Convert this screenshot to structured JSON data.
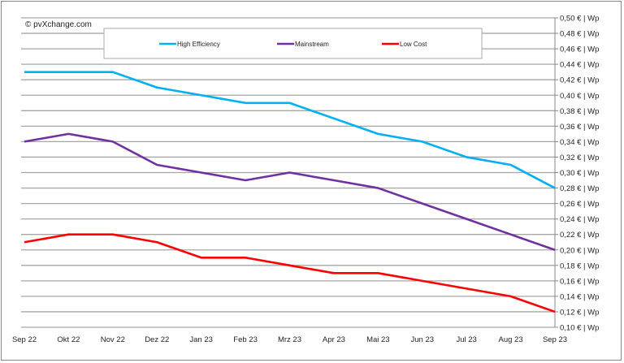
{
  "chart_data": {
    "type": "line",
    "copyright": "© pvXchange.com",
    "categories": [
      "Sep 22",
      "Okt 22",
      "Nov 22",
      "Dez 22",
      "Jan 23",
      "Feb 23",
      "Mrz 23",
      "Apr 23",
      "Mai 23",
      "Jun 23",
      "Jul 23",
      "Aug 23",
      "Sep 23"
    ],
    "ylim": [
      0.1,
      0.5
    ],
    "ytick_step": 0.02,
    "ytick_labels": [
      "0,10 € | Wp",
      "0,12 € | Wp",
      "0,14 € | Wp",
      "0,16 € | Wp",
      "0,18 € | Wp",
      "0,20 € | Wp",
      "0,22 € | Wp",
      "0,24 € | Wp",
      "0,26 € | Wp",
      "0,28 € | Wp",
      "0,30 € | Wp",
      "0,32 € | Wp",
      "0,34 € | Wp",
      "0,36 € | Wp",
      "0,38 € | Wp",
      "0,40 € | Wp",
      "0,42 € | Wp",
      "0,44 € | Wp",
      "0,46 € | Wp",
      "0,48 € | Wp",
      "0,50 € | Wp"
    ],
    "yaxis_position": "right",
    "grid": true,
    "legend_position": "top",
    "series": [
      {
        "name": "High Efficiency",
        "color": "#00b0f0",
        "values": [
          0.43,
          0.43,
          0.43,
          0.41,
          0.4,
          0.39,
          0.39,
          0.37,
          0.35,
          0.34,
          0.32,
          0.31,
          0.28
        ]
      },
      {
        "name": "Mainstream",
        "color": "#7030a0",
        "values": [
          0.34,
          0.35,
          0.34,
          0.31,
          0.3,
          0.29,
          0.3,
          0.29,
          0.28,
          0.26,
          0.24,
          0.22,
          0.2
        ]
      },
      {
        "name": "Low Cost",
        "color": "#ff0000",
        "values": [
          0.21,
          0.22,
          0.22,
          0.21,
          0.19,
          0.19,
          0.18,
          0.17,
          0.17,
          0.16,
          0.15,
          0.14,
          0.12
        ]
      }
    ]
  }
}
